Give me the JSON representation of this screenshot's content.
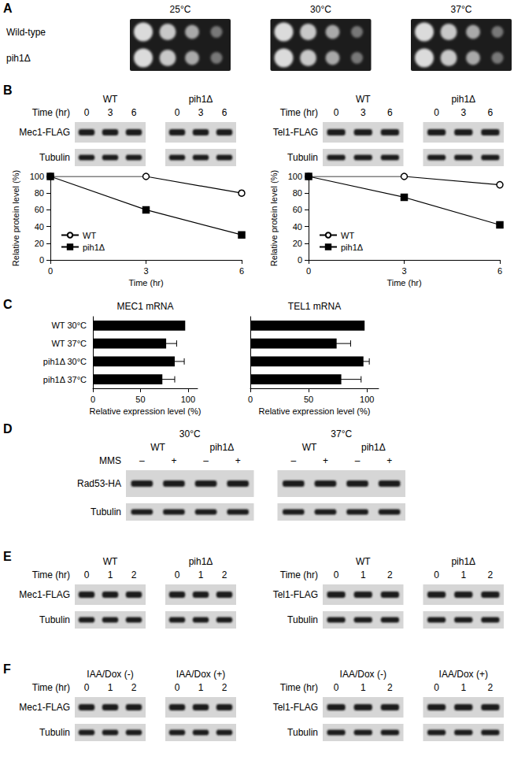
{
  "figure": {
    "A": {
      "label": "A",
      "temperatures": [
        "25°C",
        "30°C",
        "37°C"
      ],
      "strains": [
        "Wild-type",
        "pih1Δ"
      ]
    },
    "B": {
      "label": "B",
      "blots": [
        {
          "groups": [
            "WT",
            "pih1Δ"
          ],
          "lane_title": "Time (hr)",
          "lanes": [
            "0",
            "3",
            "6"
          ],
          "rows": [
            "Mec1-FLAG",
            "Tubulin"
          ]
        },
        {
          "groups": [
            "WT",
            "pih1Δ"
          ],
          "lane_title": "Time (hr)",
          "lanes": [
            "0",
            "3",
            "6"
          ],
          "rows": [
            "Tel1-FLAG",
            "Tubulin"
          ]
        }
      ]
    },
    "C": {
      "label": "C"
    },
    "D": {
      "label": "D",
      "blots": [
        {
          "headers": [
            "30°C",
            "37°C"
          ],
          "groups": [
            "WT",
            "pih1Δ"
          ],
          "lane_title": "MMS",
          "lanes": [
            "–",
            "+"
          ],
          "rows": [
            "Rad53-HA",
            "Tubulin"
          ]
        }
      ]
    },
    "E": {
      "label": "E",
      "blots": [
        {
          "groups": [
            "WT",
            "pih1Δ"
          ],
          "lane_title": "Time (hr)",
          "lanes": [
            "0",
            "1",
            "2"
          ],
          "rows": [
            "Mec1-FLAG",
            "Tubulin"
          ]
        },
        {
          "groups": [
            "WT",
            "pih1Δ"
          ],
          "lane_title": "Time (hr)",
          "lanes": [
            "0",
            "1",
            "2"
          ],
          "rows": [
            "Tel1-FLAG",
            "Tubulin"
          ]
        }
      ]
    },
    "F": {
      "label": "F",
      "blots": [
        {
          "groups": [
            "IAA/Dox (-)",
            "IAA/Dox (+)"
          ],
          "lane_title": "Time (hr)",
          "lanes": [
            "0",
            "1",
            "2"
          ],
          "rows": [
            "Mec1-FLAG",
            "Tubulin"
          ]
        },
        {
          "groups": [
            "IAA/Dox (-)",
            "IAA/Dox (+)"
          ],
          "lane_title": "Time (hr)",
          "lanes": [
            "0",
            "1",
            "2"
          ],
          "rows": [
            "Tel1-FLAG",
            "Tubulin"
          ]
        }
      ]
    }
  },
  "chart_data": [
    {
      "type": "line",
      "x_label": "Time (hr)",
      "y_label": "Relative protein level (%)",
      "x": [
        0,
        3,
        6
      ],
      "series": [
        {
          "name": "WT",
          "color": "#000000",
          "marker": "open_circle",
          "values": [
            100,
            100,
            80
          ]
        },
        {
          "name": "pih1Δ",
          "color": "#000000",
          "marker": "square",
          "values": [
            100,
            60,
            30
          ]
        }
      ],
      "xlim": [
        0,
        6
      ],
      "xticks": [
        0,
        3,
        6
      ],
      "ylim": [
        0,
        100
      ],
      "yticks": [
        0,
        20,
        40,
        60,
        80,
        100
      ],
      "legend": "lower left",
      "grid": false
    },
    {
      "type": "line",
      "x_label": "Time (hr)",
      "y_label": "Relative protein level (%)",
      "x": [
        0,
        3,
        6
      ],
      "series": [
        {
          "name": "WT",
          "color": "#000000",
          "marker": "open_circle",
          "values": [
            100,
            100,
            90
          ]
        },
        {
          "name": "pih1Δ",
          "color": "#000000",
          "marker": "square",
          "values": [
            100,
            75,
            42
          ]
        }
      ],
      "xlim": [
        0,
        6
      ],
      "xticks": [
        0,
        3,
        6
      ],
      "ylim": [
        0,
        100
      ],
      "yticks": [
        0,
        20,
        40,
        60,
        80,
        100
      ],
      "legend": "lower left",
      "grid": false
    },
    {
      "type": "bar",
      "orientation": "horizontal",
      "title": "MEC1 mRNA",
      "x_label": "Relative expression level (%)",
      "categories": [
        "WT 30°C",
        "WT 37°C",
        "pih1Δ 30°C",
        "pih1Δ 37°C"
      ],
      "values": [
        97,
        77,
        86,
        73
      ],
      "errors": [
        0,
        11,
        10,
        13
      ],
      "color": "#000000",
      "xlim": [
        0,
        110
      ],
      "xticks": [
        0,
        50,
        100
      ],
      "grid": false
    },
    {
      "type": "bar",
      "orientation": "horizontal",
      "title": "TEL1 mRNA",
      "x_label": "Relative expression level (%)",
      "categories": [
        "WT 30°C",
        "WT 37°C",
        "pih1Δ 30°C",
        "pih1Δ 37°C"
      ],
      "values": [
        98,
        74,
        97,
        78
      ],
      "errors": [
        0,
        12,
        5,
        17
      ],
      "color": "#000000",
      "xlim": [
        0,
        110
      ],
      "xticks": [
        0,
        50,
        100
      ],
      "grid": false,
      "tick_labels": "x"
    }
  ]
}
